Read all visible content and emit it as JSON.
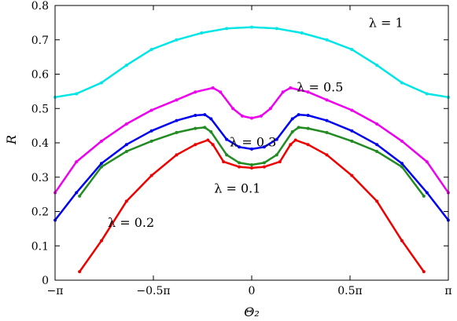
{
  "chart_data": {
    "type": "line",
    "xlabel": "Θ₂",
    "ylabel": "R",
    "xlim": [
      -3.14159,
      3.14159
    ],
    "ylim": [
      0,
      0.8
    ],
    "x_ticks": [
      {
        "value": -3.14159,
        "label": "−π"
      },
      {
        "value": -1.5708,
        "label": "−0.5π"
      },
      {
        "value": 0,
        "label": "0"
      },
      {
        "value": 1.5708,
        "label": "0.5π"
      },
      {
        "value": 3.14159,
        "label": "π"
      }
    ],
    "y_ticks": [
      "0",
      "0.1",
      "0.2",
      "0.3",
      "0.4",
      "0.5",
      "0.6",
      "0.7",
      "0.8"
    ],
    "grid": false,
    "series": [
      {
        "color": "#00e5e5",
        "x": [
          -3.14,
          -2.8,
          -2.4,
          -2.0,
          -1.6,
          -1.2,
          -0.8,
          -0.4,
          0,
          0.4,
          0.8,
          1.2,
          1.6,
          2.0,
          2.4,
          2.8,
          3.14
        ],
        "y": [
          0.533,
          0.543,
          0.575,
          0.626,
          0.672,
          0.7,
          0.72,
          0.733,
          0.737,
          0.733,
          0.72,
          0.7,
          0.672,
          0.626,
          0.575,
          0.543,
          0.533
        ]
      },
      {
        "color": "#ee00ee",
        "x": [
          -3.14,
          -2.8,
          -2.4,
          -2.0,
          -1.6,
          -1.2,
          -0.9,
          -0.62,
          -0.5,
          -0.3,
          -0.15,
          0,
          0.15,
          0.3,
          0.5,
          0.62,
          0.9,
          1.2,
          1.6,
          2.0,
          2.4,
          2.8,
          3.14
        ],
        "y": [
          0.255,
          0.345,
          0.405,
          0.455,
          0.495,
          0.525,
          0.548,
          0.56,
          0.548,
          0.5,
          0.478,
          0.472,
          0.478,
          0.5,
          0.548,
          0.56,
          0.548,
          0.525,
          0.495,
          0.455,
          0.405,
          0.345,
          0.255
        ]
      },
      {
        "color": "#0000ee",
        "x": [
          -3.14,
          -2.8,
          -2.4,
          -2.0,
          -1.6,
          -1.2,
          -0.9,
          -0.75,
          -0.65,
          -0.4,
          -0.2,
          0,
          0.2,
          0.4,
          0.65,
          0.75,
          0.9,
          1.2,
          1.6,
          2.0,
          2.4,
          2.8,
          3.14
        ],
        "y": [
          0.175,
          0.255,
          0.34,
          0.395,
          0.435,
          0.465,
          0.48,
          0.482,
          0.47,
          0.41,
          0.388,
          0.382,
          0.388,
          0.41,
          0.47,
          0.482,
          0.48,
          0.465,
          0.435,
          0.395,
          0.34,
          0.255,
          0.175
        ]
      },
      {
        "color": "#228b22",
        "x": [
          -2.75,
          -2.4,
          -2.0,
          -1.6,
          -1.2,
          -0.9,
          -0.75,
          -0.65,
          -0.4,
          -0.2,
          0,
          0.2,
          0.4,
          0.65,
          0.75,
          0.9,
          1.2,
          1.6,
          2.0,
          2.4,
          2.75
        ],
        "y": [
          0.245,
          0.33,
          0.375,
          0.405,
          0.43,
          0.442,
          0.445,
          0.432,
          0.365,
          0.342,
          0.336,
          0.342,
          0.365,
          0.432,
          0.445,
          0.442,
          0.43,
          0.405,
          0.375,
          0.33,
          0.245
        ]
      },
      {
        "color": "#ee0000",
        "x": [
          -2.75,
          -2.4,
          -2.0,
          -1.6,
          -1.2,
          -0.9,
          -0.7,
          -0.62,
          -0.45,
          -0.2,
          0,
          0.2,
          0.45,
          0.62,
          0.7,
          0.9,
          1.2,
          1.6,
          2.0,
          2.4,
          2.75
        ],
        "y": [
          0.025,
          0.115,
          0.23,
          0.305,
          0.365,
          0.395,
          0.408,
          0.395,
          0.345,
          0.33,
          0.327,
          0.33,
          0.345,
          0.395,
          0.408,
          0.395,
          0.365,
          0.305,
          0.23,
          0.115,
          0.025
        ]
      }
    ],
    "annotations": [
      {
        "text": "λ = 1",
        "x": 1.87,
        "y": 0.737
      },
      {
        "text": "λ = 0.5",
        "x": 0.72,
        "y": 0.55
      },
      {
        "text": "λ = 0.3",
        "x": -0.35,
        "y": 0.39
      },
      {
        "text": "λ = 0.1",
        "x": -0.6,
        "y": 0.255
      },
      {
        "text": "λ = 0.2",
        "x": -2.3,
        "y": 0.155
      }
    ]
  }
}
